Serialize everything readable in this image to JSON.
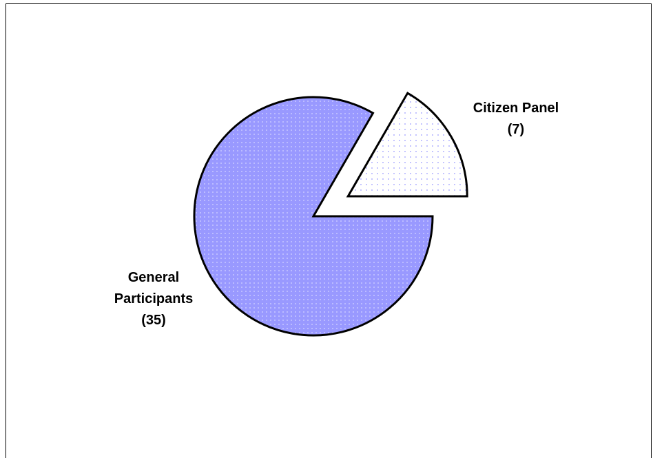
{
  "chart_data": {
    "type": "pie",
    "title": "",
    "slices": [
      {
        "label_lines": [
          "General",
          "Participants",
          "(35)"
        ],
        "value": 35,
        "fill": "#9999ff",
        "dot": "#d6d6ff",
        "exploded": false
      },
      {
        "label_lines": [
          "Citizen Panel",
          "(7)"
        ],
        "value": 7,
        "fill": "#ffffff",
        "dot": "#9999ff",
        "exploded": true
      }
    ],
    "legend": "none",
    "data_labels": "outside"
  }
}
